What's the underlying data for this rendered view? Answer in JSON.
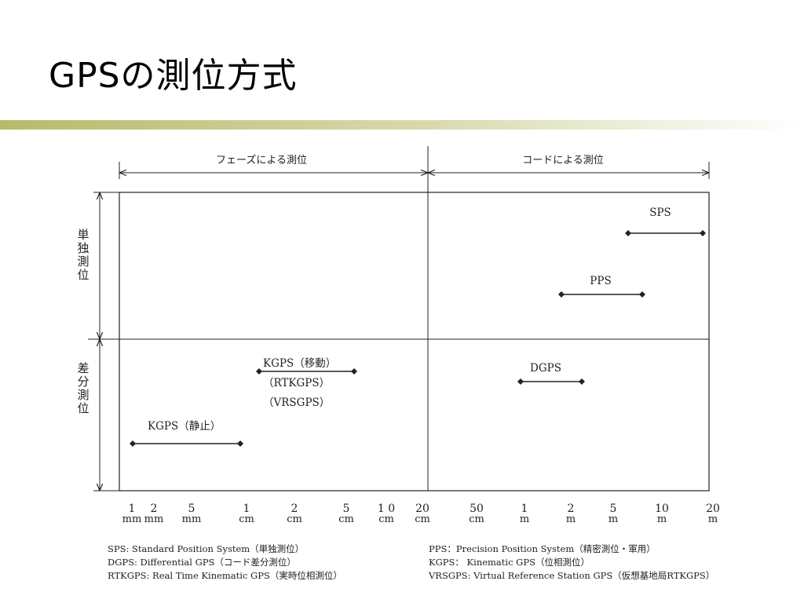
{
  "title": "GPSの測位方式",
  "colors": {
    "accent_rule_start": "#b7ba6b",
    "accent_rule_end": "#ffffff",
    "line": "#222222"
  },
  "chart_data": {
    "type": "range-diagram",
    "header_ranges": [
      {
        "label": "フェーズによる測位",
        "from_tick": 0,
        "to_tick": 9
      },
      {
        "label": "コードによる測位",
        "from_tick": 9,
        "to_tick": 16
      }
    ],
    "row_groups": [
      {
        "label": "単独測位"
      },
      {
        "label": "差分測位"
      }
    ],
    "x_ticks": [
      {
        "num": "1",
        "unit": "mm"
      },
      {
        "num": "2",
        "unit": "mm"
      },
      {
        "num": "5",
        "unit": "mm"
      },
      {
        "num": "1",
        "unit": "cm"
      },
      {
        "num": "2",
        "unit": "cm"
      },
      {
        "num": "5",
        "unit": "cm"
      },
      {
        "num": "1 0",
        "unit": "cm"
      },
      {
        "num": "20",
        "unit": "cm"
      },
      {
        "num": "50",
        "unit": "cm"
      },
      {
        "num": "1",
        "unit": "m"
      },
      {
        "num": "2",
        "unit": "m"
      },
      {
        "num": "5",
        "unit": "m"
      },
      {
        "num": "10",
        "unit": "m"
      },
      {
        "num": "20",
        "unit": "m"
      }
    ],
    "methods": [
      {
        "labels": [
          "SPS"
        ],
        "group": 0
      },
      {
        "labels": [
          "PPS"
        ],
        "group": 0
      },
      {
        "labels": [
          "DGPS"
        ],
        "group": 1
      },
      {
        "labels": [
          "KGPS（移動）",
          "（RTKGPS）",
          "（VRSGPS）"
        ],
        "group": 1
      },
      {
        "labels": [
          "KGPS（静止）"
        ],
        "group": 1
      }
    ]
  },
  "footnotes_left": [
    "SPS: Standard Position System（単独測位）",
    "DGPS: Differential GPS（コード差分測位）",
    "RTKGPS: Real Time Kinematic GPS（実時位相測位）"
  ],
  "footnotes_right": [
    "PPS：Precision Position System（精密測位・軍用）",
    "KGPS： Kinematic GPS（位相測位）",
    "VRSGPS: Virtual Reference Station GPS（仮想基地局RTKGPS）"
  ]
}
